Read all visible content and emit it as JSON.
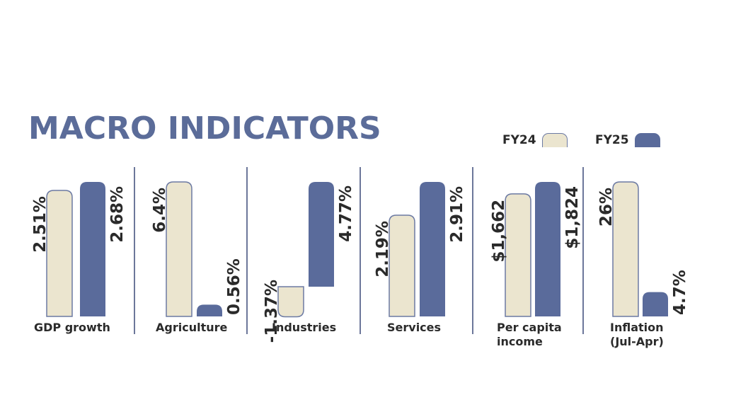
{
  "chart_data": {
    "type": "bar",
    "title": "MACRO INDICATORS",
    "series": [
      {
        "name": "FY24",
        "color": "#ebe5cf"
      },
      {
        "name": "FY25",
        "color": "#5a6b9b"
      }
    ],
    "panels": [
      {
        "category": "GDP growth",
        "label_lines": [
          "GDP growth"
        ],
        "values": [
          2.51,
          2.68
        ],
        "value_labels": [
          "2.51%",
          "2.68%"
        ]
      },
      {
        "category": "Agriculture",
        "label_lines": [
          "Agriculture"
        ],
        "values": [
          6.4,
          0.56
        ],
        "value_labels": [
          "6.4%",
          "0.56%"
        ]
      },
      {
        "category": "Industries",
        "label_lines": [
          "Industries"
        ],
        "values": [
          -1.37,
          4.77
        ],
        "value_labels": [
          "-1.37%",
          "4.77%"
        ]
      },
      {
        "category": "Services",
        "label_lines": [
          "Services"
        ],
        "values": [
          2.19,
          2.91
        ],
        "value_labels": [
          "2.19%",
          "2.91%"
        ]
      },
      {
        "category": "Per capita income",
        "label_lines": [
          "Per capita",
          "income"
        ],
        "values": [
          1662,
          1824
        ],
        "value_labels": [
          "$1,662",
          "$1,824"
        ]
      },
      {
        "category": "Inflation (Jul-Apr)",
        "label_lines": [
          "Inflation",
          "(Jul-Apr)"
        ],
        "values": [
          26,
          4.7
        ],
        "value_labels": [
          "26%",
          "4.7%"
        ]
      }
    ],
    "grid": false,
    "legend_position": "top-right"
  },
  "colors": {
    "title": "#5b6c99",
    "divider": "#3b4a78",
    "fy24_outline": "#6c7aa3",
    "text": "#2a2a2a"
  }
}
